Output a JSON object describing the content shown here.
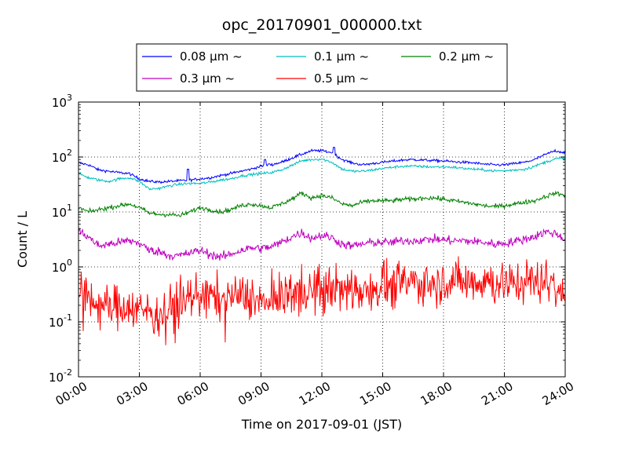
{
  "chart_data": {
    "type": "line",
    "title": "opc_20170901_000000.txt",
    "xlabel": "Time on 2017-09-01 (JST)",
    "ylabel": "Count / L",
    "x_ticks": [
      "00:00",
      "03:00",
      "06:00",
      "09:00",
      "12:00",
      "15:00",
      "18:00",
      "21:00",
      "24:00"
    ],
    "x_range_hours": [
      0,
      24
    ],
    "y_scale": "log",
    "ylim": [
      0.01,
      1000
    ],
    "y_ticks": [
      {
        "base": "10",
        "exp": "-2",
        "value": 0.01
      },
      {
        "base": "10",
        "exp": "-1",
        "value": 0.1
      },
      {
        "base": "10",
        "exp": "0",
        "value": 1
      },
      {
        "base": "10",
        "exp": "1",
        "value": 10
      },
      {
        "base": "10",
        "exp": "2",
        "value": 100
      },
      {
        "base": "10",
        "exp": "3",
        "value": 1000
      }
    ],
    "grid": true,
    "legend_position": "top (above plot)",
    "series": [
      {
        "name": "0.08 μm ~",
        "color": "#0000ff",
        "noise": 0.012,
        "x": [
          0,
          0.5,
          1,
          1.5,
          2,
          2.5,
          3,
          3.5,
          4,
          4.5,
          5,
          5.5,
          6,
          6.5,
          7,
          7.5,
          8,
          8.5,
          9,
          9.5,
          10,
          10.5,
          11,
          11.5,
          12,
          12.5,
          13,
          13.5,
          14,
          14.5,
          15,
          15.5,
          16,
          16.5,
          17,
          17.5,
          18,
          18.5,
          19,
          19.5,
          20,
          20.5,
          21,
          21.5,
          22,
          22.5,
          23,
          23.5,
          24
        ],
        "y": [
          78,
          72,
          58,
          55,
          52,
          50,
          40,
          36,
          35,
          36,
          37,
          38,
          40,
          42,
          46,
          50,
          55,
          60,
          68,
          72,
          80,
          95,
          112,
          130,
          130,
          120,
          90,
          78,
          72,
          76,
          80,
          84,
          88,
          90,
          88,
          86,
          85,
          82,
          80,
          78,
          74,
          72,
          72,
          76,
          80,
          90,
          110,
          130,
          120
        ],
        "spikes": [
          [
            5.4,
            60
          ],
          [
            9.2,
            90
          ],
          [
            9.4,
            75
          ],
          [
            12.6,
            150
          ]
        ]
      },
      {
        "name": "0.1 μm ~",
        "color": "#00bfbf",
        "noise": 0.012,
        "x": [
          0,
          0.5,
          1,
          1.5,
          2,
          2.5,
          3,
          3.5,
          4,
          4.5,
          5,
          5.5,
          6,
          6.5,
          7,
          7.5,
          8,
          8.5,
          9,
          9.5,
          10,
          10.5,
          11,
          11.5,
          12,
          12.5,
          13,
          13.5,
          14,
          14.5,
          15,
          15.5,
          16,
          16.5,
          17,
          17.5,
          18,
          18.5,
          19,
          19.5,
          20,
          20.5,
          21,
          21.5,
          22,
          22.5,
          23,
          23.5,
          24
        ],
        "y": [
          50,
          42,
          38,
          36,
          40,
          42,
          36,
          26,
          27,
          30,
          32,
          33,
          33,
          35,
          38,
          40,
          45,
          48,
          50,
          52,
          58,
          70,
          85,
          90,
          92,
          80,
          60,
          55,
          55,
          58,
          62,
          65,
          68,
          68,
          67,
          66,
          66,
          65,
          62,
          60,
          58,
          56,
          56,
          58,
          60,
          68,
          80,
          92,
          95
        ],
        "spikes": []
      },
      {
        "name": "0.2 μm ~",
        "color": "#008000",
        "noise": 0.02,
        "x": [
          0,
          0.5,
          1,
          1.5,
          2,
          2.5,
          3,
          3.5,
          4,
          4.5,
          5,
          5.5,
          6,
          6.5,
          7,
          7.5,
          8,
          8.5,
          9,
          9.5,
          10,
          10.5,
          11,
          11.5,
          12,
          12.5,
          13,
          13.5,
          14,
          14.5,
          15,
          15.5,
          16,
          16.5,
          17,
          17.5,
          18,
          18.5,
          19,
          19.5,
          20,
          20.5,
          21,
          21.5,
          22,
          22.5,
          23,
          23.5,
          24
        ],
        "y": [
          12,
          10,
          11,
          12,
          13,
          14,
          12,
          9.5,
          9,
          9,
          8.5,
          10,
          12,
          11,
          10,
          11,
          13,
          14,
          13,
          12,
          14,
          17,
          22,
          18,
          20,
          18,
          14,
          13,
          15,
          16,
          16,
          16,
          17,
          17,
          18,
          18,
          17,
          16,
          15,
          14,
          13,
          12.5,
          13,
          14,
          15,
          16,
          19,
          22,
          20
        ],
        "spikes": []
      },
      {
        "name": "0.3 μm ~",
        "color": "#bf00bf",
        "noise": 0.04,
        "x": [
          0,
          0.5,
          1,
          1.5,
          2,
          2.5,
          3,
          3.5,
          4,
          4.5,
          5,
          5.5,
          6,
          6.5,
          7,
          7.5,
          8,
          8.5,
          9,
          9.5,
          10,
          10.5,
          11,
          11.5,
          12,
          12.5,
          13,
          13.5,
          14,
          14.5,
          15,
          15.5,
          16,
          16.5,
          17,
          17.5,
          18,
          18.5,
          19,
          19.5,
          20,
          20.5,
          21,
          21.5,
          22,
          22.5,
          23,
          23.5,
          24
        ],
        "y": [
          4.5,
          3.5,
          2.4,
          2.6,
          2.8,
          3.0,
          2.7,
          2.0,
          1.9,
          1.6,
          1.6,
          1.8,
          2.0,
          1.7,
          1.5,
          1.7,
          2.0,
          2.2,
          2.2,
          2.3,
          2.8,
          3.5,
          4.2,
          3.3,
          3.8,
          3.4,
          2.6,
          2.4,
          2.6,
          2.8,
          2.8,
          2.8,
          3.0,
          3.0,
          3.1,
          3.2,
          3.1,
          3.0,
          3.0,
          2.9,
          2.8,
          2.6,
          2.7,
          2.9,
          3.2,
          3.6,
          4.3,
          4.1,
          3.2
        ],
        "spikes": []
      },
      {
        "name": "0.5 μm ~",
        "color": "#ff0000",
        "noise": 0.2,
        "x": [
          0,
          0.5,
          1,
          1.5,
          2,
          2.5,
          3,
          3.5,
          4,
          4.5,
          5,
          5.5,
          6,
          6.5,
          7,
          7.5,
          8,
          8.5,
          9,
          9.5,
          10,
          10.5,
          11,
          11.5,
          12,
          12.5,
          13,
          13.5,
          14,
          14.5,
          15,
          15.5,
          16,
          16.5,
          17,
          17.5,
          18,
          18.5,
          19,
          19.5,
          20,
          20.5,
          21,
          21.5,
          22,
          22.5,
          23,
          23.5,
          24
        ],
        "y": [
          0.3,
          0.28,
          0.2,
          0.18,
          0.2,
          0.2,
          0.18,
          0.16,
          0.15,
          0.18,
          0.2,
          0.28,
          0.35,
          0.3,
          0.25,
          0.3,
          0.3,
          0.3,
          0.22,
          0.25,
          0.3,
          0.35,
          0.4,
          0.38,
          0.42,
          0.45,
          0.38,
          0.4,
          0.42,
          0.45,
          0.48,
          0.5,
          0.5,
          0.52,
          0.55,
          0.55,
          0.55,
          0.55,
          0.55,
          0.55,
          0.58,
          0.55,
          0.5,
          0.52,
          0.55,
          0.55,
          0.6,
          0.55,
          0.3
        ],
        "spikes": []
      }
    ]
  }
}
